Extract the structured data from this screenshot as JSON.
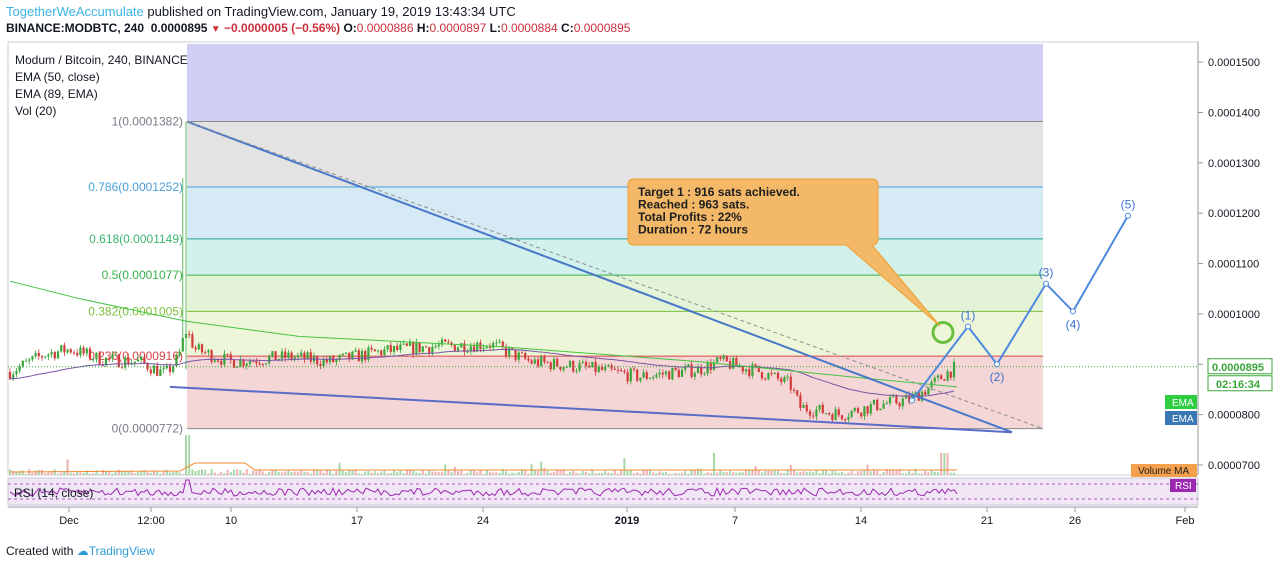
{
  "header": {
    "author": "TogetherWeAccumulate",
    "published": "published on TradingView.com, January 19, 2019 13:43:34 UTC",
    "symbol": "BINANCE:MODBTC, 240",
    "last": "0.0000895",
    "change": "−0.0000005 (−0.56%)",
    "o_label": "O:",
    "o_value": "0.0000886",
    "h_label": "H:",
    "h_value": "0.0000897",
    "l_label": "L:",
    "l_value": "0.0000884",
    "c_label": "C:",
    "c_value": "0.0000895"
  },
  "legend": {
    "title": "Modum / Bitcoin, 240, BINANCE",
    "ema1": "EMA (50, close)",
    "ema2": "EMA (89, EMA)",
    "vol": "Vol (20)"
  },
  "rsi_label": "RSI (14, close)",
  "footer": {
    "created": "Created with",
    "brand": "TradingView"
  },
  "annotation": {
    "line1": "Target 1 : 916 sats  achieved.",
    "line2": "Reached : 963 sats.",
    "line3": "Total Profits : 22%",
    "line4": "Duration : 72 hours"
  },
  "badges": {
    "price": "0.0000895",
    "countdown": "02:16:34",
    "ema_a": "EMA",
    "ema_b": "EMA",
    "volume_ma": "Volume MA",
    "rsi": "RSI"
  },
  "colors": {
    "ema50": "#43c443",
    "ema89": "#7a55a8",
    "candle_up": "#3aa63a",
    "candle_down": "#d33b3b",
    "wedge": "#4a78c9",
    "elliott": "#4e89e0",
    "rsi": "#9c27b0",
    "annotation": "#f3b868"
  },
  "chart_data": {
    "type": "candlestick",
    "symbol": "MODBTC",
    "timeframe": "240",
    "y_axis": {
      "ticks": [
        "0.0001500",
        "0.0001400",
        "0.0001300",
        "0.0001200",
        "0.0001100",
        "0.0001000",
        "0.0000900",
        "0.0000800",
        "0.0000700"
      ],
      "range": [
        6.8e-05,
        0.000154
      ]
    },
    "x_axis": {
      "ticks": [
        "Dec",
        "12:00",
        "10",
        "17",
        "24",
        "2019",
        "7",
        "14",
        "21",
        "26",
        "Feb"
      ]
    },
    "fibonacci": [
      {
        "level": "1",
        "price": "0.0001382",
        "label": "1(0.0001382)"
      },
      {
        "level": "0.786",
        "price": "0.0001252",
        "label": "0.786(0.0001252)"
      },
      {
        "level": "0.618",
        "price": "0.0001149",
        "label": "0.618(0.0001149)"
      },
      {
        "level": "0.5",
        "price": "0.0001077",
        "label": "0.5(0.0001077)"
      },
      {
        "level": "0.382",
        "price": "0.0001005",
        "label": "0.382(0.0001005)"
      },
      {
        "level": "0.236",
        "price": "0.0000916",
        "label": "0.236(0.0000916)"
      },
      {
        "level": "0",
        "price": "0.0000772",
        "label": "0(0.0000772)"
      }
    ],
    "elliott_waves": [
      "(1)",
      "(2)",
      "(3)",
      "(4)",
      "(5)"
    ],
    "last_price": 8.95e-05
  }
}
